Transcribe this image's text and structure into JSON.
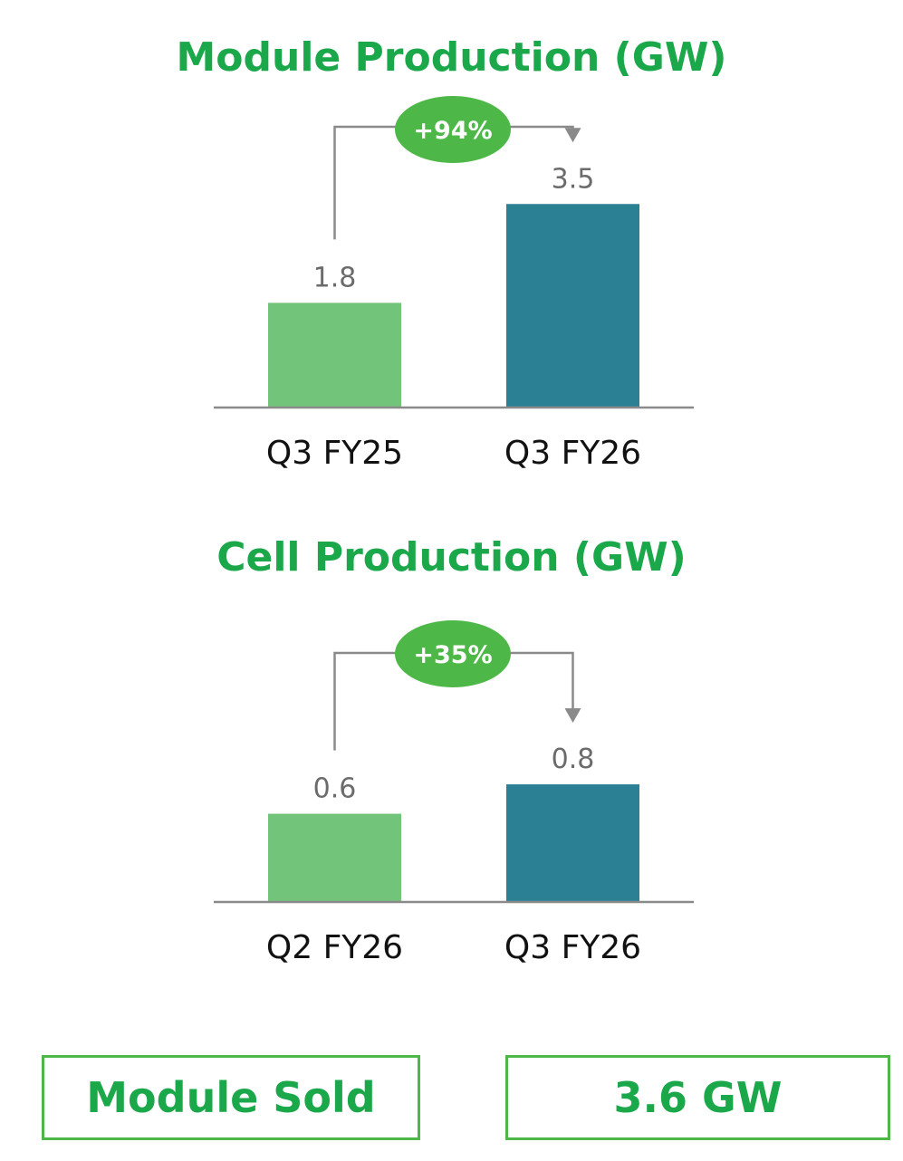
{
  "colors": {
    "title": "#1aa84a",
    "bar_prior": "#72c47a",
    "bar_current": "#2b8094",
    "badge": "#4db848",
    "connector": "#8a8a8a",
    "baseline": "#8a8a8a"
  },
  "chart_data": [
    {
      "type": "bar",
      "title": "Module Production (GW)",
      "categories": [
        "Q3 FY25",
        "Q3 FY26"
      ],
      "values": [
        1.8,
        3.5
      ],
      "value_labels": [
        "1.8",
        "3.5"
      ],
      "growth_label": "+94%",
      "ylim": [
        0,
        3.8
      ]
    },
    {
      "type": "bar",
      "title": "Cell Production (GW)",
      "categories": [
        "Q2 FY26",
        "Q3 FY26"
      ],
      "values": [
        0.6,
        0.8
      ],
      "value_labels": [
        "0.6",
        "0.8"
      ],
      "growth_label": "+35%",
      "ylim": [
        0,
        1.17
      ]
    }
  ],
  "summary": {
    "label": "Module Sold",
    "value": "3.6 GW"
  }
}
